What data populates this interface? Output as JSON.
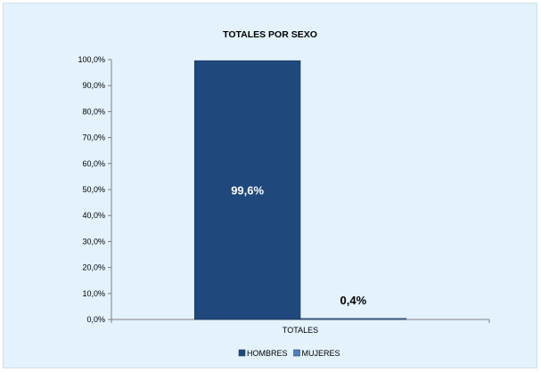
{
  "chart_data": {
    "type": "bar",
    "title": "TOTALES POR SEXO",
    "categories": [
      "TOTALES"
    ],
    "series": [
      {
        "name": "HOMBRES",
        "values": [
          99.6
        ],
        "label": "99,6%",
        "color": "#1f497d"
      },
      {
        "name": "MUJERES",
        "values": [
          0.4
        ],
        "label": "0,4%",
        "color": "#4f81bd"
      }
    ],
    "ylim": [
      0,
      100
    ],
    "yticks": [
      "0,0%",
      "10,0%",
      "20,0%",
      "30,0%",
      "40,0%",
      "50,0%",
      "60,0%",
      "70,0%",
      "80,0%",
      "90,0%",
      "100,0%"
    ],
    "grid": false,
    "legend": "bottom",
    "background": "#e3f2fd"
  }
}
